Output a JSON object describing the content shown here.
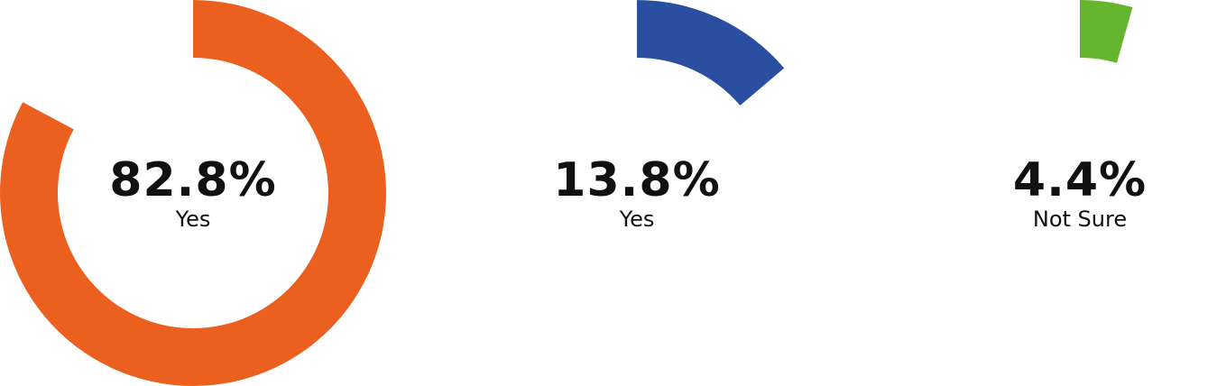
{
  "chart_data": {
    "type": "pie",
    "charts": [
      {
        "value": 82.8,
        "value_label": "82.8%",
        "label": "Yes",
        "color": "#EC601F"
      },
      {
        "value": 13.8,
        "value_label": "13.8%",
        "label": "Yes",
        "color": "#2B4FA0"
      },
      {
        "value": 4.4,
        "value_label": "4.4%",
        "label": "Not Sure",
        "color": "#66B52F"
      }
    ]
  }
}
